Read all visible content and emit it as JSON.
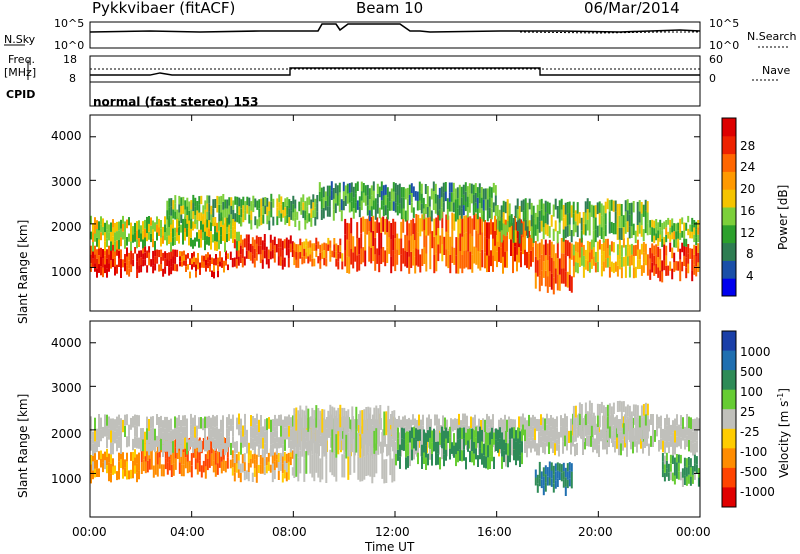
{
  "header": {
    "station": "Pykkvibaer (fitACF)",
    "beam": "Beam 10",
    "date": "06/Mar/2014"
  },
  "top_panels": {
    "nsky": {
      "left_label": "N.Sky",
      "right_label": "N.Search",
      "left_ticks": [
        "10^5",
        "10^0"
      ],
      "right_ticks": [
        "10^5",
        "10^0"
      ]
    },
    "freq": {
      "left_label_1": "Freq.",
      "left_label_2": "[MHz]",
      "right_label": "Nave",
      "left_ticks": [
        "18",
        "8"
      ],
      "right_ticks": [
        "60",
        "0"
      ]
    },
    "cpid": {
      "label": "CPID",
      "value": "normal (fast stereo) 153"
    }
  },
  "power_panel": {
    "ylabel": "Slant Range [km]",
    "yticks": [
      "4000",
      "3000",
      "2000",
      "1000"
    ],
    "colorbar_label": "Power [dB]",
    "colorbar_ticks": [
      "28",
      "24",
      "20",
      "16",
      "12",
      "8",
      "4"
    ],
    "colors": [
      "#0000ee",
      "#1a4fa8",
      "#2e7d52",
      "#2ca02c",
      "#7ccf3a",
      "#f5c400",
      "#ff9900",
      "#ff6600",
      "#ee2200",
      "#dd0000"
    ]
  },
  "velocity_panel": {
    "ylabel": "Slant Range [km]",
    "yticks": [
      "4000",
      "3000",
      "2000",
      "1000"
    ],
    "colorbar_label": "Velocity [m s",
    "colorbar_sup": "-1",
    "colorbar_label_end": "]",
    "colorbar_ticks": [
      "1000",
      "500",
      "100",
      "25",
      "-25",
      "-100",
      "-500",
      "-1000"
    ],
    "colors": [
      "#1a3fa8",
      "#1f6fb0",
      "#2e8b57",
      "#66cc33",
      "#c0c0bb",
      "#ffcc00",
      "#ff8c00",
      "#ff4400",
      "#e00000"
    ]
  },
  "xaxis": {
    "ticks": [
      "00:00",
      "04:00",
      "08:00",
      "12:00",
      "16:00",
      "20:00",
      "00:00"
    ],
    "label": "Time UT"
  },
  "chart_data": {
    "type": "heatmap",
    "panels": [
      "N.Sky / N.Search",
      "Freq. / Nave",
      "Power [dB]",
      "Velocity [m s-1]"
    ],
    "x_range_hours": [
      0,
      24
    ],
    "y_range_km": [
      0,
      4500
    ],
    "xlabel": "Time UT",
    "ylabel": "Slant Range [km]",
    "power_range_db": [
      0,
      30
    ],
    "velocity_levels": [
      1000,
      500,
      100,
      25,
      -25,
      -100,
      -500,
      -1000
    ],
    "power_bands": [
      {
        "t0": 0.0,
        "t1": 1.5,
        "r0": 900,
        "r1": 1500,
        "db": 26
      },
      {
        "t0": 1.5,
        "t1": 3.5,
        "r0": 900,
        "r1": 1400,
        "db": 27
      },
      {
        "t0": 3.5,
        "t1": 5.5,
        "r0": 900,
        "r1": 1300,
        "db": 25
      },
      {
        "t0": 5.5,
        "t1": 8.0,
        "r0": 1100,
        "r1": 1700,
        "db": 26
      },
      {
        "t0": 8.0,
        "t1": 10.0,
        "r0": 1100,
        "r1": 1600,
        "db": 22
      },
      {
        "t0": 10.0,
        "t1": 12.8,
        "r0": 1000,
        "r1": 2100,
        "db": 24
      },
      {
        "t0": 12.8,
        "t1": 15.5,
        "r0": 1000,
        "r1": 2200,
        "db": 22
      },
      {
        "t0": 15.5,
        "t1": 17.5,
        "r0": 1000,
        "r1": 2100,
        "db": 24
      },
      {
        "t0": 17.5,
        "t1": 19.0,
        "r0": 500,
        "r1": 1600,
        "db": 23
      },
      {
        "t0": 19.0,
        "t1": 22.0,
        "r0": 900,
        "r1": 1600,
        "db": 18
      },
      {
        "t0": 22.0,
        "t1": 24.0,
        "r0": 800,
        "r1": 1500,
        "db": 24
      },
      {
        "t0": 0.0,
        "t1": 6.0,
        "r0": 1500,
        "r1": 2100,
        "db": 14
      },
      {
        "t0": 3.0,
        "t1": 9.0,
        "r0": 2000,
        "r1": 2600,
        "db": 12
      },
      {
        "t0": 9.0,
        "t1": 16.0,
        "r0": 2200,
        "r1": 2900,
        "db": 10
      },
      {
        "t0": 16.0,
        "t1": 22.0,
        "r0": 1700,
        "r1": 2500,
        "db": 12
      },
      {
        "t0": 22.0,
        "t1": 24.0,
        "r0": 1600,
        "r1": 2100,
        "db": 14
      }
    ],
    "velocity_bands": [
      {
        "t0": 0.0,
        "t1": 2.0,
        "r0": 900,
        "r1": 1500,
        "v": -100
      },
      {
        "t0": 2.0,
        "t1": 5.5,
        "r0": 1000,
        "r1": 1800,
        "v": -300
      },
      {
        "t0": 5.5,
        "t1": 8.0,
        "r0": 900,
        "r1": 1500,
        "v": -60
      },
      {
        "t0": 0.0,
        "t1": 24.0,
        "r0": 1500,
        "r1": 2300,
        "v": 0
      },
      {
        "t0": 8.0,
        "t1": 12.0,
        "r0": 900,
        "r1": 2500,
        "v": 0
      },
      {
        "t0": 12.0,
        "t1": 17.0,
        "r0": 1200,
        "r1": 2000,
        "v": 80
      },
      {
        "t0": 17.5,
        "t1": 19.0,
        "r0": 600,
        "r1": 1200,
        "v": 300
      },
      {
        "t0": 19.0,
        "t1": 22.0,
        "r0": 1800,
        "r1": 2600,
        "v": 0
      },
      {
        "t0": 22.5,
        "t1": 24.0,
        "r0": 800,
        "r1": 1400,
        "v": 60
      }
    ]
  }
}
